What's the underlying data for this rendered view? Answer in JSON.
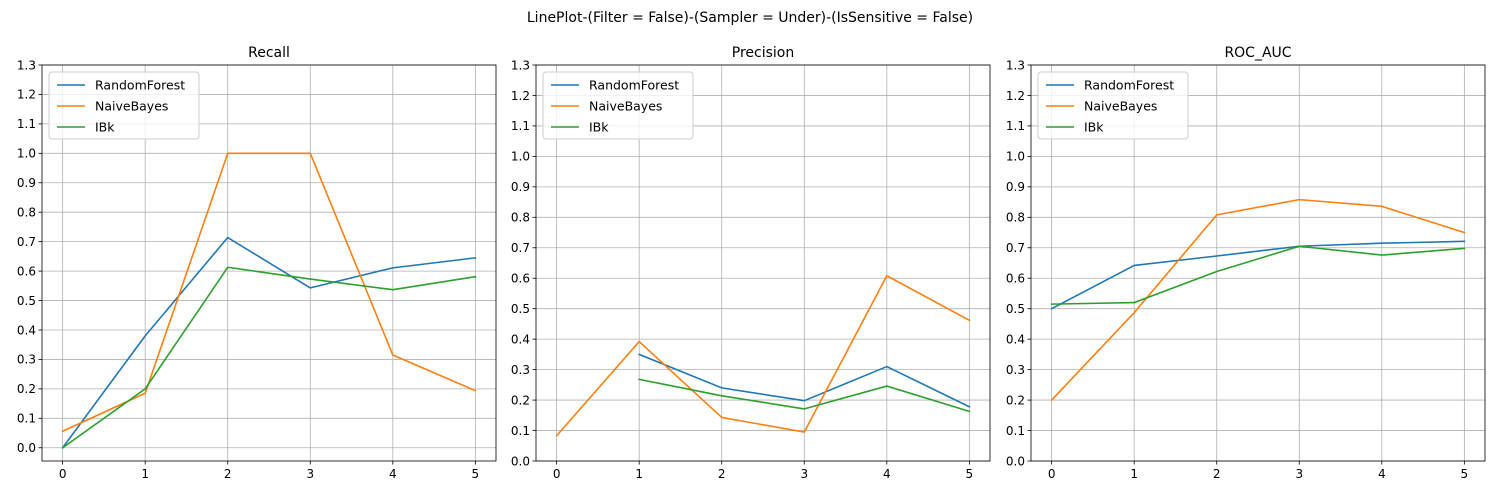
{
  "figure": {
    "suptitle": "LinePlot-(Filter = False)-(Sampler = Under)-(IsSensitive = False)"
  },
  "chart_data": [
    {
      "type": "line",
      "title": "Recall",
      "xlabel": "",
      "ylabel": "",
      "x": [
        0,
        1,
        2,
        3,
        4,
        5
      ],
      "xlim": [
        -0.25,
        5.25
      ],
      "ylim": [
        -0.045,
        1.3
      ],
      "xticks": [
        "0",
        "1",
        "2",
        "3",
        "4",
        "5"
      ],
      "yticks": [
        "0.0",
        "0.1",
        "0.2",
        "0.3",
        "0.4",
        "0.5",
        "0.6",
        "0.7",
        "0.8",
        "0.9",
        "1.0",
        "1.1",
        "1.2",
        "1.3"
      ],
      "grid": true,
      "legend": "upper-left",
      "series": [
        {
          "name": "RandomForest",
          "color": "#1f77b4",
          "values": [
            0.0,
            0.38,
            0.714,
            0.543,
            0.611,
            0.645
          ]
        },
        {
          "name": "NaiveBayes",
          "color": "#ff7f0e",
          "values": [
            0.056,
            0.185,
            1.0,
            1.0,
            0.315,
            0.194
          ]
        },
        {
          "name": "IBk",
          "color": "#2ca02c",
          "values": [
            0.0,
            0.2,
            0.613,
            0.573,
            0.537,
            0.581
          ]
        }
      ]
    },
    {
      "type": "line",
      "title": "Precision",
      "xlabel": "",
      "ylabel": "",
      "x": [
        0,
        1,
        2,
        3,
        4,
        5
      ],
      "xlim": [
        -0.25,
        5.25
      ],
      "ylim": [
        0.0,
        1.3
      ],
      "xticks": [
        "0",
        "1",
        "2",
        "3",
        "4",
        "5"
      ],
      "yticks": [
        "0.0",
        "0.1",
        "0.2",
        "0.3",
        "0.4",
        "0.5",
        "0.6",
        "0.7",
        "0.8",
        "0.9",
        "1.0",
        "1.1",
        "1.2",
        "1.3"
      ],
      "grid": true,
      "legend": "upper-left",
      "series": [
        {
          "name": "RandomForest",
          "color": "#1f77b4",
          "values": [
            null,
            0.35,
            0.24,
            0.198,
            0.31,
            0.178
          ]
        },
        {
          "name": "NaiveBayes",
          "color": "#ff7f0e",
          "values": [
            0.083,
            0.392,
            0.143,
            0.095,
            0.608,
            0.462
          ]
        },
        {
          "name": "IBk",
          "color": "#2ca02c",
          "values": [
            null,
            0.268,
            0.214,
            0.171,
            0.246,
            0.163
          ]
        }
      ]
    },
    {
      "type": "line",
      "title": "ROC_AUC",
      "xlabel": "",
      "ylabel": "",
      "x": [
        0,
        1,
        2,
        3,
        4,
        5
      ],
      "xlim": [
        -0.25,
        5.25
      ],
      "ylim": [
        0.0,
        1.3
      ],
      "xticks": [
        "0",
        "1",
        "2",
        "3",
        "4",
        "5"
      ],
      "yticks": [
        "0.0",
        "0.1",
        "0.2",
        "0.3",
        "0.4",
        "0.5",
        "0.6",
        "0.7",
        "0.8",
        "0.9",
        "1.0",
        "1.1",
        "1.2",
        "1.3"
      ],
      "grid": true,
      "legend": "upper-left",
      "series": [
        {
          "name": "RandomForest",
          "color": "#1f77b4",
          "values": [
            0.5,
            0.642,
            0.673,
            0.705,
            0.715,
            0.721
          ]
        },
        {
          "name": "NaiveBayes",
          "color": "#ff7f0e",
          "values": [
            0.2,
            0.487,
            0.808,
            0.858,
            0.836,
            0.75
          ]
        },
        {
          "name": "IBk",
          "color": "#2ca02c",
          "values": [
            0.515,
            0.52,
            0.622,
            0.705,
            0.676,
            0.698
          ]
        }
      ]
    }
  ]
}
